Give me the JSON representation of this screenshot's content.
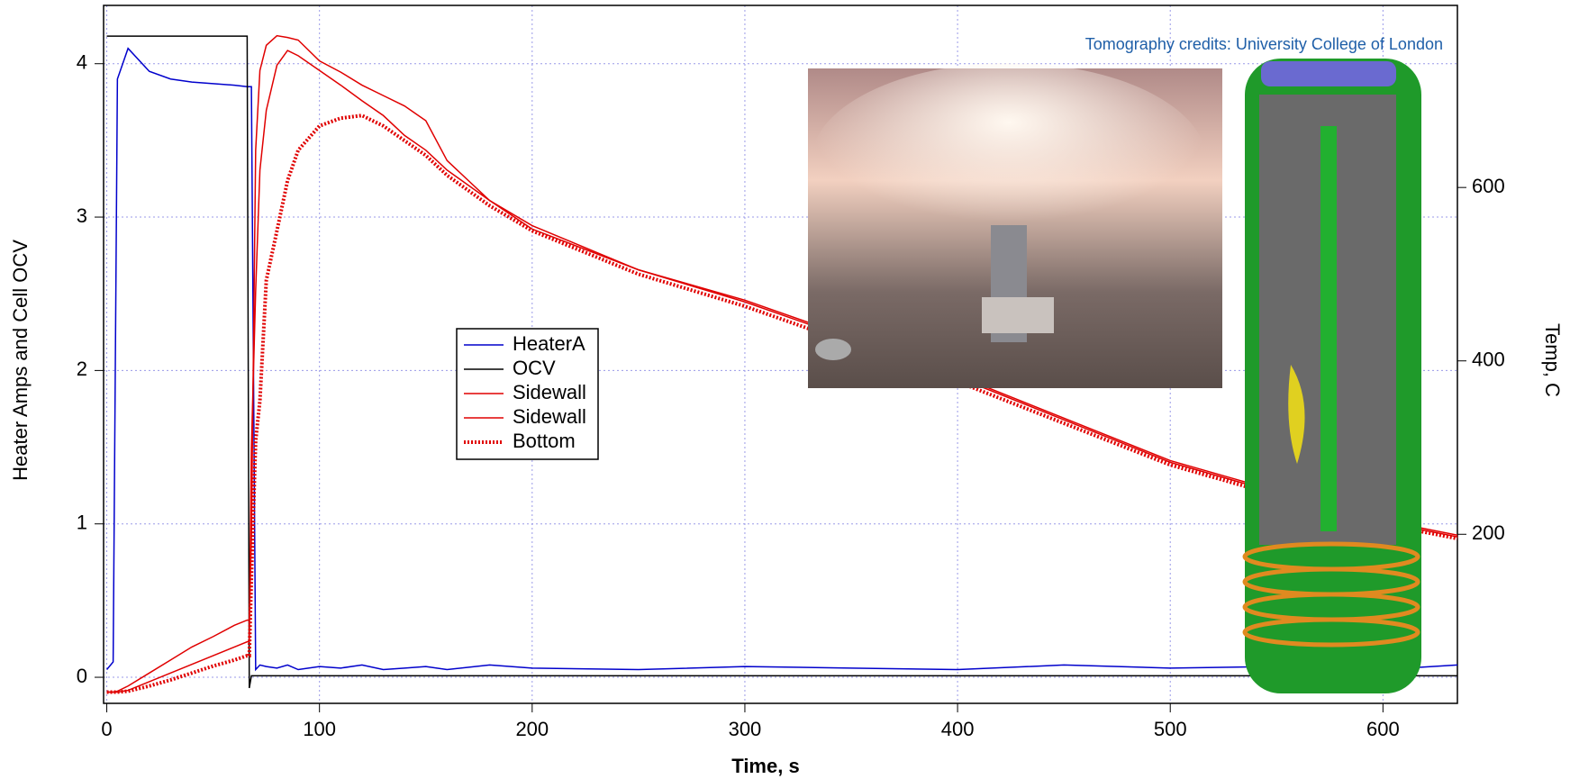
{
  "chart_data": {
    "type": "line",
    "x_label": "Time, s",
    "y_label": "Heater Amps and Cell OCV",
    "y2_label": "Temp, C",
    "annotation": "Tomography credits: University College of London",
    "xlim": [
      -1.5,
      635
    ],
    "xticks": [
      0,
      100,
      200,
      300,
      400,
      500,
      600
    ],
    "ylim": [
      -0.17,
      4.38
    ],
    "yticks": [
      0,
      1,
      2,
      3,
      4
    ],
    "y2lim": [
      5,
      810
    ],
    "y2ticks": [
      200,
      400,
      600
    ],
    "grid": true,
    "legend": "center-left",
    "x": [
      0,
      3,
      5,
      10,
      20,
      30,
      40,
      50,
      60,
      66,
      67,
      68,
      70,
      72,
      75,
      80,
      85,
      90,
      100,
      110,
      120,
      130,
      140,
      150,
      160,
      180,
      200,
      250,
      300,
      350,
      400,
      450,
      500,
      550,
      600,
      635
    ],
    "series": [
      {
        "name": "HeaterA",
        "color": "#0000cc",
        "style": "solid",
        "values": [
          0.05,
          0.1,
          3.9,
          4.1,
          3.95,
          3.9,
          3.88,
          3.87,
          3.86,
          3.85,
          3.85,
          3.85,
          0.05,
          0.08,
          0.07,
          0.06,
          0.08,
          0.05,
          0.07,
          0.06,
          0.08,
          0.05,
          0.06,
          0.07,
          0.05,
          0.08,
          0.06,
          0.05,
          0.07,
          0.06,
          0.05,
          0.08,
          0.06,
          0.07,
          0.05,
          0.08
        ]
      },
      {
        "name": "OCV",
        "color": "#000000",
        "style": "solid",
        "values": [
          4.18,
          4.18,
          4.18,
          4.18,
          4.18,
          4.18,
          4.18,
          4.18,
          4.18,
          4.18,
          -0.07,
          0.01,
          0.01,
          0.01,
          0.01,
          0.01,
          0.01,
          0.01,
          0.01,
          0.01,
          0.01,
          0.01,
          0.01,
          0.01,
          0.01,
          0.01,
          0.01,
          0.01,
          0.01,
          0.01,
          0.01,
          0.01,
          0.01,
          0.01,
          0.01,
          0.01
        ]
      },
      {
        "name": "Sidewall",
        "color": "#e00000",
        "style": "solid",
        "axis": "y2",
        "values": [
          18,
          18,
          19,
          25,
          40,
          55,
          70,
          82,
          95,
          101,
          101,
          200,
          643,
          735,
          764,
          775,
          773,
          770,
          746,
          733,
          718,
          706,
          694,
          677,
          631,
          585,
          556,
          505,
          470,
          427,
          383,
          334,
          285,
          250,
          216,
          199
        ]
      },
      {
        "name": "Sidewall",
        "color": "#e00000",
        "style": "solid",
        "axis": "y2",
        "values": [
          18,
          18,
          18,
          20,
          30,
          40,
          50,
          60,
          70,
          76,
          76,
          300,
          481,
          620,
          689,
          741,
          758,
          752,
          735,
          718,
          700,
          683,
          660,
          643,
          620,
          585,
          552,
          505,
          468,
          425,
          381,
          332,
          283,
          248,
          214,
          197
        ]
      },
      {
        "name": "Bottom",
        "color": "#e00000",
        "style": "dotted",
        "axis": "y2",
        "values": [
          18,
          18,
          18,
          19,
          25,
          32,
          40,
          48,
          55,
          60,
          60,
          150,
          308,
          354,
          493,
          550,
          608,
          643,
          671,
          680,
          683,
          671,
          654,
          637,
          614,
          579,
          550,
          500,
          463,
          420,
          376,
          328,
          280,
          245,
          212,
          195
        ]
      }
    ]
  }
}
